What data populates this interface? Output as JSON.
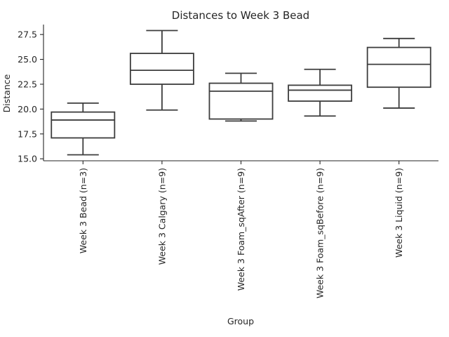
{
  "chart_data": {
    "type": "box",
    "title": "Distances to Week 3 Bead",
    "xlabel": "Group",
    "ylabel": "Distance",
    "ylim": [
      14.8,
      28.5
    ],
    "yticks": [
      15.0,
      17.5,
      20.0,
      22.5,
      25.0,
      27.5
    ],
    "ytick_labels": [
      "15.0",
      "17.5",
      "20.0",
      "22.5",
      "25.0",
      "27.5"
    ],
    "grid": false,
    "categories": [
      "Week 3 Bead (n=3)",
      "Week 3 Calgary (n=9)",
      "Week 3 Foam_sqAfter (n=9)",
      "Week 3 Foam_sqBefore (n=9)",
      "Week 3 Liquid (n=9)"
    ],
    "boxes": [
      {
        "whisker_low": 15.4,
        "q1": 17.1,
        "median": 18.9,
        "q3": 19.7,
        "whisker_high": 20.6
      },
      {
        "whisker_low": 19.9,
        "q1": 22.5,
        "median": 23.9,
        "q3": 25.6,
        "whisker_high": 27.9
      },
      {
        "whisker_low": 18.8,
        "q1": 19.0,
        "median": 21.8,
        "q3": 22.6,
        "whisker_high": 23.6
      },
      {
        "whisker_low": 19.3,
        "q1": 20.8,
        "median": 21.9,
        "q3": 22.4,
        "whisker_high": 24.0
      },
      {
        "whisker_low": 20.1,
        "q1": 22.2,
        "median": 24.5,
        "q3": 26.2,
        "whisker_high": 27.1
      }
    ]
  }
}
